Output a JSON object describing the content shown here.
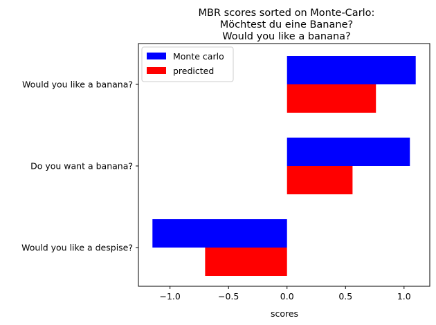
{
  "chart_data": {
    "type": "bar",
    "orientation": "horizontal",
    "title": [
      "MBR scores sorted on Monte-Carlo:",
      "Möchtest du eine Banane?",
      "Would you like a banana?"
    ],
    "xlabel": "scores",
    "ylabel": "",
    "xlim": [
      -1.27,
      1.22
    ],
    "xticks": [
      -1.0,
      -0.5,
      0.0,
      0.5,
      1.0
    ],
    "xtick_labels": [
      "−1.0",
      "−0.5",
      "0.0",
      "0.5",
      "1.0"
    ],
    "categories": [
      "Would you like a banana?",
      "Do you want a banana?",
      "Would you like a despise?"
    ],
    "series": [
      {
        "name": "Monte carlo",
        "color": "#0000ff",
        "values": [
          1.1,
          1.05,
          -1.15
        ]
      },
      {
        "name": "predicted",
        "color": "#ff0000",
        "values": [
          0.76,
          0.56,
          -0.7
        ]
      }
    ],
    "grid": false,
    "legend_position": "upper-left"
  }
}
